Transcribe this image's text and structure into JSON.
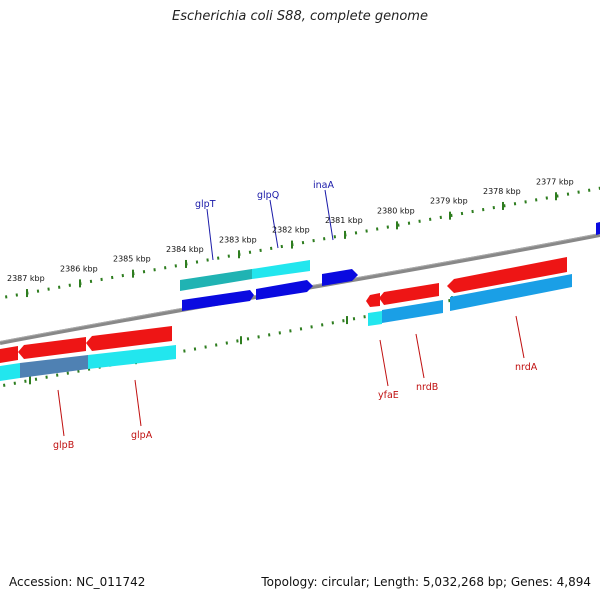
{
  "title": "Escherichia coli S88, complete genome",
  "footer": {
    "accession": "Accession: NC_011742",
    "summary": "Topology: circular; Length: 5,032,268 bp; Genes: 4,894"
  },
  "colors": {
    "backbone": "#888888",
    "tick": "#2e7d1f",
    "forward_label": "#1a1aa8",
    "reverse_label": "#c01010",
    "forward_arrow": "#0a0ae0",
    "reverse_arrow": "#ee1515",
    "cyan": "#22e6ee",
    "teal": "#20b3b3"
  },
  "ticks": [
    {
      "label": "2377 kbp"
    },
    {
      "label": "2378 kbp"
    },
    {
      "label": "2379 kbp"
    },
    {
      "label": "2380 kbp"
    },
    {
      "label": "2381 kbp"
    },
    {
      "label": "2382 kbp"
    },
    {
      "label": "2383 kbp"
    },
    {
      "label": "2384 kbp"
    },
    {
      "label": "2385 kbp"
    },
    {
      "label": "2386 kbp"
    },
    {
      "label": "2387 kbp"
    }
  ],
  "genes_forward": [
    {
      "name": "glpT"
    },
    {
      "name": "glpQ"
    },
    {
      "name": "inaA"
    }
  ],
  "genes_reverse": [
    {
      "name": "yfaE"
    },
    {
      "name": "nrdB"
    },
    {
      "name": "nrdA"
    },
    {
      "name": "glpB"
    },
    {
      "name": "glpA"
    }
  ]
}
